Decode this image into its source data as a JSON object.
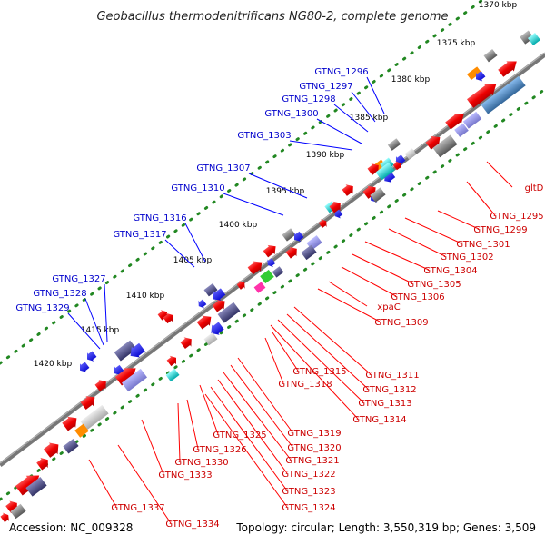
{
  "title": "Geobacillus thermodenitrificans NG80-2, complete genome",
  "footer": {
    "accession": "Accession: NC_009328",
    "topology": "Topology: circular; Length: 3,550,319 bp; Genes: 3,509"
  },
  "ticks": [
    "1370 kbp",
    "1375 kbp",
    "1380 kbp",
    "1385 kbp",
    "1390 kbp",
    "1395 kbp",
    "1400 kbp",
    "1405 kbp",
    "1410 kbp",
    "1415 kbp",
    "1420 kbp"
  ],
  "genes_top": [
    "GTNG_1296",
    "GTNG_1297",
    "GTNG_1298",
    "GTNG_1300",
    "GTNG_1303",
    "GTNG_1307",
    "GTNG_1310",
    "GTNG_1316",
    "GTNG_1317",
    "GTNG_1327",
    "GTNG_1328",
    "GTNG_1329"
  ],
  "genes_bottom": [
    "gltD",
    "GTNG_1295",
    "GTNG_1299",
    "GTNG_1301",
    "GTNG_1302",
    "GTNG_1304",
    "GTNG_1305",
    "GTNG_1306",
    "xpaC",
    "GTNG_1309",
    "GTNG_1311",
    "GTNG_1312",
    "GTNG_1313",
    "GTNG_1314",
    "GTNG_1315",
    "GTNG_1318",
    "GTNG_1319",
    "GTNG_1320",
    "GTNG_1321",
    "GTNG_1322",
    "GTNG_1323",
    "GTNG_1324",
    "GTNG_1325",
    "GTNG_1326",
    "GTNG_1330",
    "GTNG_1333",
    "GTNG_1334",
    "GTNG_1337"
  ],
  "colors": {
    "backbone": "#777777",
    "forward_gene": "#ff0000",
    "reverse_gene": "#0000ff",
    "label_blue": "#0000cc",
    "label_red": "#cc0000",
    "ruler_dots": "#228822",
    "orf": "#4a4a8a",
    "rna_cyan": "#00cccc",
    "rna_orange": "#ff8c00",
    "rna_magenta": "#ff33aa",
    "rna_green": "#33cc33",
    "grey_feature": "#888888",
    "steel_blue": "#4682b4"
  }
}
